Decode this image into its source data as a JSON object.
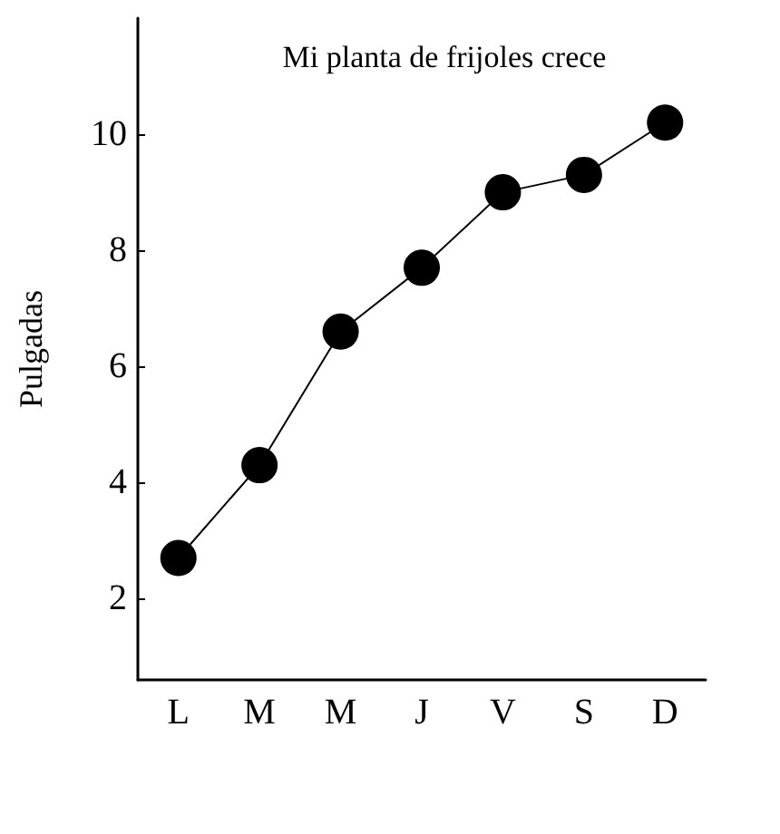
{
  "chart_data": {
    "type": "line",
    "title": "Mi planta de frijoles crece",
    "ylabel": "Pulgadas",
    "categories": [
      "L",
      "M",
      "M",
      "J",
      "V",
      "S",
      "D"
    ],
    "series": [
      {
        "color": "#000000",
        "values": [
          2.7,
          4.3,
          6.6,
          7.7,
          9.0,
          9.3,
          10.2
        ]
      }
    ],
    "ylim": [
      0.6,
      12
    ],
    "yticks": [
      2,
      4,
      6,
      8,
      10
    ],
    "grid": false,
    "marker": "circle",
    "line_style": "solid"
  }
}
